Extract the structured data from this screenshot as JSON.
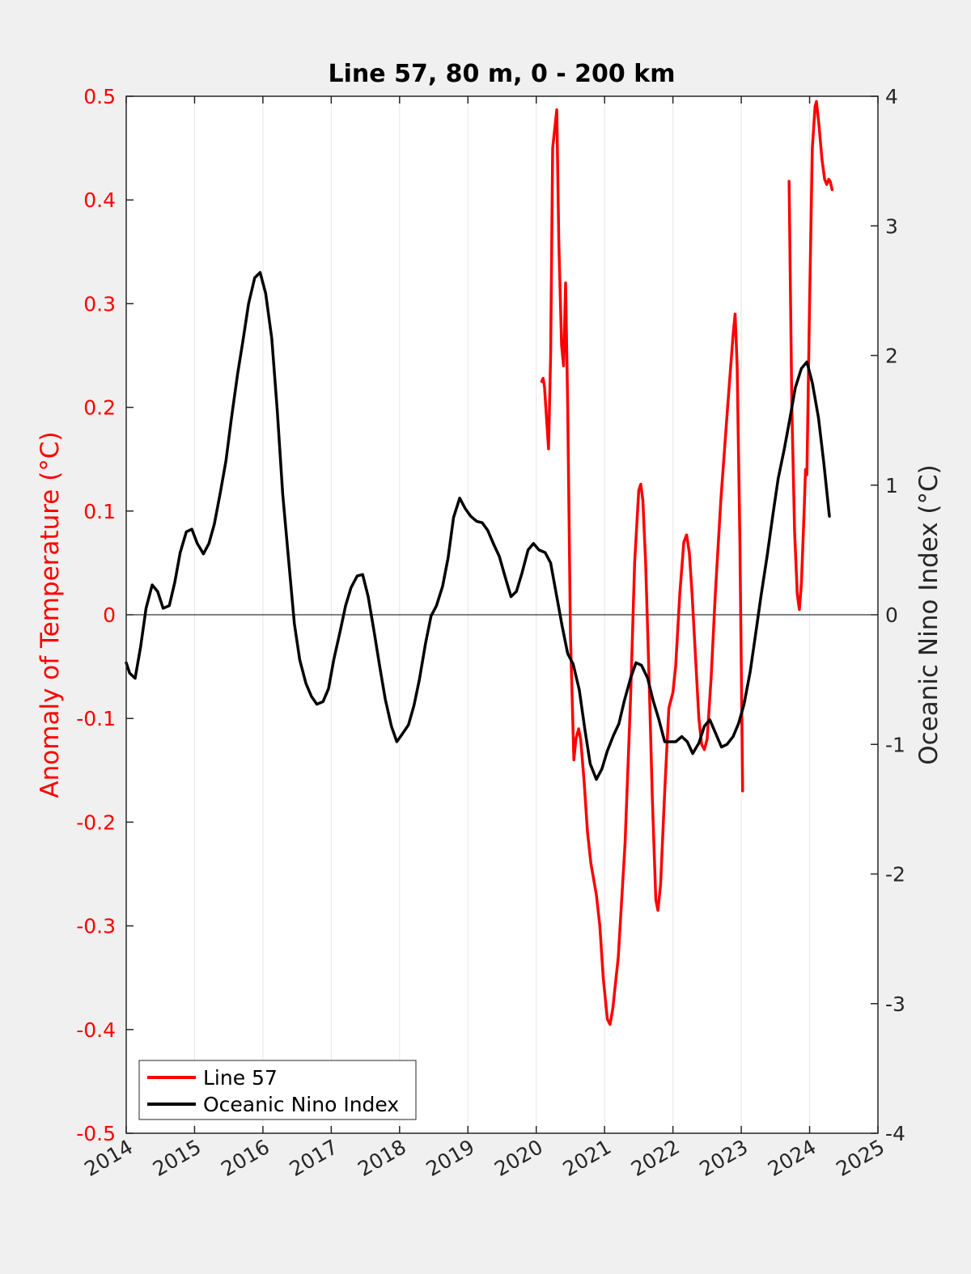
{
  "chart_data": {
    "type": "line",
    "title": "Line 57, 80 m, 0 - 200 km",
    "xlabel": "",
    "ylabel_left": "Anomaly of Temperature (°C)",
    "ylabel_right": "Oceanic Nino Index (°C)",
    "xlim": [
      2014,
      2025
    ],
    "ylim_left": [
      -0.5,
      0.5
    ],
    "ylim_right": [
      -4,
      4
    ],
    "x_ticks": [
      "2014",
      "2015",
      "2016",
      "2017",
      "2018",
      "2019",
      "2020",
      "2021",
      "2022",
      "2023",
      "2024",
      "2025"
    ],
    "y_left_ticks": [
      "-0.5",
      "-0.4",
      "-0.3",
      "-0.2",
      "-0.1",
      "0",
      "0.1",
      "0.2",
      "0.3",
      "0.4",
      "0.5"
    ],
    "y_right_ticks": [
      "-4",
      "-3",
      "-2",
      "-1",
      "0",
      "1",
      "2",
      "3",
      "4"
    ],
    "left_color": "#ff0000",
    "series": [
      {
        "name": "Line 57",
        "axis": "left",
        "color": "#ff0000",
        "segments": [
          [
            [
              2020.08,
              0.225
            ],
            [
              2020.1,
              0.228
            ],
            [
              2020.12,
              0.22
            ],
            [
              2020.15,
              0.19
            ],
            [
              2020.18,
              0.16
            ],
            [
              2020.21,
              0.25
            ],
            [
              2020.24,
              0.45
            ],
            [
              2020.3,
              0.487
            ],
            [
              2020.33,
              0.36
            ],
            [
              2020.37,
              0.26
            ],
            [
              2020.4,
              0.24
            ],
            [
              2020.43,
              0.32
            ],
            [
              2020.46,
              0.2
            ],
            [
              2020.5,
              -0.02
            ],
            [
              2020.55,
              -0.14
            ],
            [
              2020.58,
              -0.12
            ],
            [
              2020.62,
              -0.11
            ],
            [
              2020.65,
              -0.12
            ],
            [
              2020.7,
              -0.16
            ],
            [
              2020.75,
              -0.21
            ],
            [
              2020.8,
              -0.24
            ],
            [
              2020.88,
              -0.27
            ],
            [
              2020.93,
              -0.3
            ],
            [
              2020.98,
              -0.35
            ],
            [
              2021.04,
              -0.39
            ],
            [
              2021.08,
              -0.395
            ],
            [
              2021.12,
              -0.38
            ],
            [
              2021.2,
              -0.33
            ],
            [
              2021.3,
              -0.22
            ],
            [
              2021.38,
              -0.08
            ],
            [
              2021.44,
              0.05
            ],
            [
              2021.5,
              0.12
            ],
            [
              2021.53,
              0.126
            ],
            [
              2021.56,
              0.11
            ],
            [
              2021.6,
              0.05
            ],
            [
              2021.65,
              -0.06
            ],
            [
              2021.7,
              -0.18
            ],
            [
              2021.75,
              -0.275
            ],
            [
              2021.78,
              -0.285
            ],
            [
              2021.82,
              -0.26
            ],
            [
              2021.88,
              -0.17
            ],
            [
              2021.94,
              -0.09
            ],
            [
              2022.0,
              -0.075
            ],
            [
              2022.04,
              -0.05
            ],
            [
              2022.1,
              0.02
            ],
            [
              2022.16,
              0.07
            ],
            [
              2022.2,
              0.077
            ],
            [
              2022.24,
              0.06
            ],
            [
              2022.28,
              0.02
            ],
            [
              2022.33,
              -0.04
            ],
            [
              2022.38,
              -0.1
            ],
            [
              2022.42,
              -0.125
            ],
            [
              2022.46,
              -0.13
            ],
            [
              2022.5,
              -0.12
            ],
            [
              2022.56,
              -0.06
            ],
            [
              2022.62,
              0.02
            ],
            [
              2022.7,
              0.11
            ],
            [
              2022.8,
              0.2
            ],
            [
              2022.88,
              0.27
            ],
            [
              2022.91,
              0.29
            ],
            [
              2022.94,
              0.24
            ],
            [
              2022.98,
              0.07
            ],
            [
              2023.02,
              -0.17
            ]
          ],
          [
            [
              2023.7,
              0.418
            ],
            [
              2023.74,
              0.2
            ],
            [
              2023.78,
              0.08
            ],
            [
              2023.82,
              0.02
            ],
            [
              2023.85,
              0.005
            ],
            [
              2023.88,
              0.03
            ],
            [
              2023.92,
              0.1
            ],
            [
              2023.94,
              0.14
            ],
            [
              2023.96,
              0.135
            ],
            [
              2024.0,
              0.3
            ],
            [
              2024.04,
              0.45
            ],
            [
              2024.08,
              0.49
            ],
            [
              2024.1,
              0.495
            ],
            [
              2024.14,
              0.47
            ],
            [
              2024.18,
              0.44
            ],
            [
              2024.22,
              0.42
            ],
            [
              2024.25,
              0.415
            ],
            [
              2024.28,
              0.42
            ],
            [
              2024.3,
              0.418
            ],
            [
              2024.33,
              0.41
            ]
          ]
        ]
      },
      {
        "name": "Oceanic Nino Index",
        "axis": "right",
        "color": "#000000",
        "points": [
          [
            2014.0,
            -0.37
          ],
          [
            2014.05,
            -0.45
          ],
          [
            2014.13,
            -0.49
          ],
          [
            2014.21,
            -0.25
          ],
          [
            2014.29,
            0.05
          ],
          [
            2014.38,
            0.23
          ],
          [
            2014.46,
            0.18
          ],
          [
            2014.54,
            0.05
          ],
          [
            2014.63,
            0.07
          ],
          [
            2014.71,
            0.25
          ],
          [
            2014.79,
            0.48
          ],
          [
            2014.88,
            0.64
          ],
          [
            2014.96,
            0.66
          ],
          [
            2015.04,
            0.55
          ],
          [
            2015.13,
            0.47
          ],
          [
            2015.21,
            0.55
          ],
          [
            2015.29,
            0.7
          ],
          [
            2015.38,
            0.95
          ],
          [
            2015.46,
            1.19
          ],
          [
            2015.54,
            1.52
          ],
          [
            2015.63,
            1.86
          ],
          [
            2015.71,
            2.12
          ],
          [
            2015.79,
            2.4
          ],
          [
            2015.88,
            2.6
          ],
          [
            2015.96,
            2.64
          ],
          [
            2016.04,
            2.48
          ],
          [
            2016.13,
            2.13
          ],
          [
            2016.21,
            1.58
          ],
          [
            2016.29,
            0.93
          ],
          [
            2016.38,
            0.4
          ],
          [
            2016.46,
            -0.07
          ],
          [
            2016.54,
            -0.35
          ],
          [
            2016.63,
            -0.53
          ],
          [
            2016.71,
            -0.63
          ],
          [
            2016.79,
            -0.69
          ],
          [
            2016.88,
            -0.67
          ],
          [
            2016.96,
            -0.57
          ],
          [
            2017.04,
            -0.34
          ],
          [
            2017.13,
            -0.13
          ],
          [
            2017.21,
            0.07
          ],
          [
            2017.29,
            0.21
          ],
          [
            2017.38,
            0.3
          ],
          [
            2017.46,
            0.31
          ],
          [
            2017.54,
            0.14
          ],
          [
            2017.63,
            -0.14
          ],
          [
            2017.71,
            -0.4
          ],
          [
            2017.79,
            -0.65
          ],
          [
            2017.88,
            -0.86
          ],
          [
            2017.96,
            -0.98
          ],
          [
            2018.04,
            -0.92
          ],
          [
            2018.13,
            -0.85
          ],
          [
            2018.21,
            -0.7
          ],
          [
            2018.29,
            -0.5
          ],
          [
            2018.38,
            -0.22
          ],
          [
            2018.46,
            -0.01
          ],
          [
            2018.54,
            0.07
          ],
          [
            2018.63,
            0.22
          ],
          [
            2018.71,
            0.44
          ],
          [
            2018.79,
            0.75
          ],
          [
            2018.88,
            0.9
          ],
          [
            2018.96,
            0.82
          ],
          [
            2019.04,
            0.76
          ],
          [
            2019.13,
            0.72
          ],
          [
            2019.21,
            0.71
          ],
          [
            2019.29,
            0.65
          ],
          [
            2019.38,
            0.54
          ],
          [
            2019.46,
            0.45
          ],
          [
            2019.54,
            0.3
          ],
          [
            2019.63,
            0.14
          ],
          [
            2019.71,
            0.18
          ],
          [
            2019.79,
            0.32
          ],
          [
            2019.88,
            0.5
          ],
          [
            2019.96,
            0.55
          ],
          [
            2020.04,
            0.5
          ],
          [
            2020.13,
            0.48
          ],
          [
            2020.21,
            0.4
          ],
          [
            2020.29,
            0.17
          ],
          [
            2020.38,
            -0.09
          ],
          [
            2020.46,
            -0.3
          ],
          [
            2020.54,
            -0.38
          ],
          [
            2020.63,
            -0.58
          ],
          [
            2020.71,
            -0.88
          ],
          [
            2020.79,
            -1.15
          ],
          [
            2020.88,
            -1.27
          ],
          [
            2020.96,
            -1.19
          ],
          [
            2021.04,
            -1.05
          ],
          [
            2021.13,
            -0.93
          ],
          [
            2021.21,
            -0.84
          ],
          [
            2021.29,
            -0.66
          ],
          [
            2021.38,
            -0.49
          ],
          [
            2021.46,
            -0.37
          ],
          [
            2021.54,
            -0.39
          ],
          [
            2021.63,
            -0.49
          ],
          [
            2021.71,
            -0.66
          ],
          [
            2021.79,
            -0.8
          ],
          [
            2021.88,
            -0.98
          ],
          [
            2021.96,
            -0.98
          ],
          [
            2022.04,
            -0.98
          ],
          [
            2022.13,
            -0.94
          ],
          [
            2022.21,
            -0.98
          ],
          [
            2022.29,
            -1.07
          ],
          [
            2022.38,
            -0.99
          ],
          [
            2022.46,
            -0.86
          ],
          [
            2022.54,
            -0.81
          ],
          [
            2022.63,
            -0.92
          ],
          [
            2022.71,
            -1.02
          ],
          [
            2022.79,
            -1.0
          ],
          [
            2022.88,
            -0.94
          ],
          [
            2022.96,
            -0.84
          ],
          [
            2023.04,
            -0.69
          ],
          [
            2023.13,
            -0.44
          ],
          [
            2023.21,
            -0.15
          ],
          [
            2023.29,
            0.15
          ],
          [
            2023.38,
            0.46
          ],
          [
            2023.46,
            0.76
          ],
          [
            2023.54,
            1.05
          ],
          [
            2023.63,
            1.28
          ],
          [
            2023.71,
            1.51
          ],
          [
            2023.79,
            1.75
          ],
          [
            2023.88,
            1.9
          ],
          [
            2023.96,
            1.95
          ],
          [
            2024.04,
            1.79
          ],
          [
            2024.13,
            1.52
          ],
          [
            2024.21,
            1.16
          ],
          [
            2024.29,
            0.76
          ]
        ]
      }
    ],
    "legend_location": "bottom-left"
  }
}
